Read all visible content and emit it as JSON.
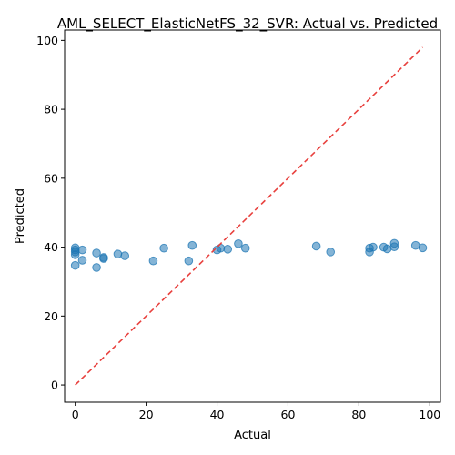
{
  "chart_data": {
    "type": "scatter",
    "title": "AML_SELECT_ElasticNetFS_32_SVR: Actual vs. Predicted",
    "xlabel": "Actual",
    "ylabel": "Predicted",
    "xlim": [
      -3,
      103
    ],
    "ylim": [
      -5,
      103
    ],
    "xticks": [
      0,
      20,
      40,
      60,
      80,
      100
    ],
    "yticks": [
      0,
      20,
      40,
      60,
      80,
      100
    ],
    "grid": false,
    "point_color": "#1f77b4",
    "reference_line": {
      "from": [
        0,
        0
      ],
      "to": [
        98,
        98
      ],
      "color": "#e8413e",
      "style": "dashed"
    },
    "points": [
      {
        "x": 0,
        "y": 39.8
      },
      {
        "x": 0,
        "y": 39.2
      },
      {
        "x": 0,
        "y": 38.6
      },
      {
        "x": 0,
        "y": 37.8
      },
      {
        "x": 0,
        "y": 34.7
      },
      {
        "x": 2,
        "y": 39.2
      },
      {
        "x": 2,
        "y": 36.2
      },
      {
        "x": 6,
        "y": 38.3
      },
      {
        "x": 6,
        "y": 34.1
      },
      {
        "x": 8,
        "y": 37.0
      },
      {
        "x": 8,
        "y": 36.7
      },
      {
        "x": 12,
        "y": 38.0
      },
      {
        "x": 14,
        "y": 37.5
      },
      {
        "x": 22,
        "y": 36.0
      },
      {
        "x": 25,
        "y": 39.7
      },
      {
        "x": 32,
        "y": 36.0
      },
      {
        "x": 33,
        "y": 40.5
      },
      {
        "x": 40,
        "y": 39.2
      },
      {
        "x": 41,
        "y": 39.7
      },
      {
        "x": 43,
        "y": 39.4
      },
      {
        "x": 46,
        "y": 41.0
      },
      {
        "x": 48,
        "y": 39.7
      },
      {
        "x": 68,
        "y": 40.3
      },
      {
        "x": 72,
        "y": 38.6
      },
      {
        "x": 83,
        "y": 39.7
      },
      {
        "x": 83,
        "y": 38.6
      },
      {
        "x": 84,
        "y": 40.0
      },
      {
        "x": 87,
        "y": 40.0
      },
      {
        "x": 88,
        "y": 39.5
      },
      {
        "x": 90,
        "y": 40.1
      },
      {
        "x": 90,
        "y": 41.1
      },
      {
        "x": 96,
        "y": 40.5
      },
      {
        "x": 98,
        "y": 39.8
      }
    ]
  }
}
